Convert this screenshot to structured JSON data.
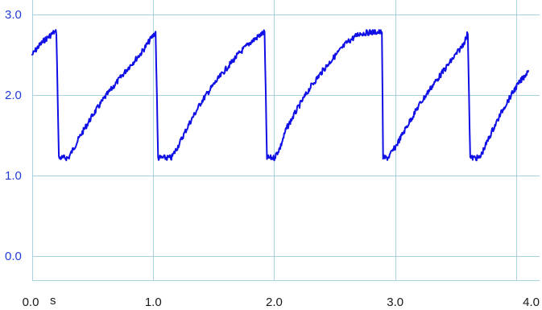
{
  "chart_data": {
    "type": "line",
    "title": "",
    "xlabel": "",
    "ylabel": "",
    "x_unit": "s",
    "xlim": [
      0.0,
      4.1
    ],
    "ylim": [
      -0.3,
      3.1
    ],
    "x_ticks": [
      {
        "value": 0.0,
        "label": "0.0"
      },
      {
        "value": 1.0,
        "label": "1.0"
      },
      {
        "value": 2.0,
        "label": "2.0"
      },
      {
        "value": 3.0,
        "label": "3.0"
      },
      {
        "value": 4.0,
        "label": "4.0"
      }
    ],
    "y_ticks": [
      {
        "value": 0.0,
        "label": "0.0"
      },
      {
        "value": 1.0,
        "label": "1.0"
      },
      {
        "value": 2.0,
        "label": "2.0"
      },
      {
        "value": 3.0,
        "label": "3.0"
      }
    ],
    "x_grid": [
      0.0,
      1.0,
      2.0,
      3.0,
      4.0
    ],
    "y_grid": [
      0.0,
      1.0,
      2.0,
      3.0
    ],
    "grid": true,
    "legend": "none",
    "colors": {
      "trace": "#1010e6",
      "grid": "#a8d2e0",
      "y_tick_labels": "#1f3bd8",
      "x_tick_labels": "#1a1a1a"
    },
    "series": [
      {
        "color": "#1010e6",
        "x": [
          0.0,
          0.05,
          0.1,
          0.15,
          0.18,
          0.2,
          0.22,
          0.25,
          0.3,
          0.4,
          0.5,
          0.6,
          0.7,
          0.8,
          0.9,
          0.99,
          1.02,
          1.04,
          1.06,
          1.1,
          1.15,
          1.2,
          1.3,
          1.4,
          1.5,
          1.6,
          1.7,
          1.8,
          1.89,
          1.92,
          1.94,
          1.96,
          2.0,
          2.05,
          2.1,
          2.2,
          2.3,
          2.4,
          2.5,
          2.6,
          2.7,
          2.8,
          2.89,
          2.9,
          2.92,
          2.94,
          3.0,
          3.1,
          3.2,
          3.3,
          3.4,
          3.5,
          3.55,
          3.59,
          3.6,
          3.62,
          3.65,
          3.7,
          3.8,
          3.9,
          4.0,
          4.1
        ],
        "y": [
          2.5,
          2.6,
          2.68,
          2.74,
          2.78,
          2.78,
          1.22,
          1.22,
          1.22,
          1.5,
          1.75,
          1.97,
          2.16,
          2.35,
          2.52,
          2.72,
          2.78,
          1.22,
          1.22,
          1.22,
          1.22,
          1.35,
          1.65,
          1.92,
          2.13,
          2.32,
          2.5,
          2.65,
          2.75,
          2.78,
          1.22,
          1.22,
          1.22,
          1.35,
          1.58,
          1.85,
          2.1,
          2.3,
          2.48,
          2.65,
          2.76,
          2.78,
          2.78,
          1.22,
          1.22,
          1.22,
          1.35,
          1.62,
          1.88,
          2.1,
          2.3,
          2.5,
          2.6,
          2.72,
          2.78,
          1.22,
          1.22,
          1.22,
          1.55,
          1.85,
          2.1,
          2.3
        ]
      }
    ]
  }
}
